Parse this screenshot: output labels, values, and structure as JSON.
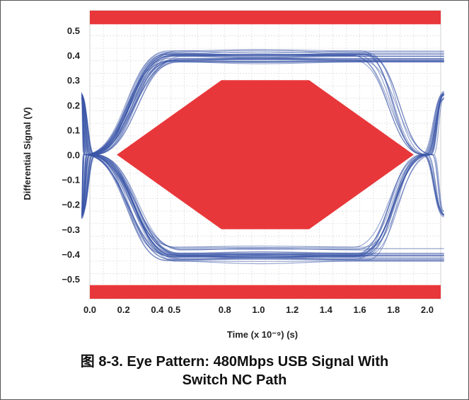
{
  "chart_data": {
    "type": "eye-diagram",
    "title": "",
    "xlabel": "Time (x 10⁻⁹) (s)",
    "ylabel": "Differential Signal (V)",
    "xlim": [
      0.0,
      2.08
    ],
    "ylim": [
      -0.58,
      0.58
    ],
    "x_ticks": [
      0.0,
      0.2,
      0.4,
      0.5,
      0.8,
      1.0,
      1.2,
      1.4,
      1.6,
      1.8,
      2.0
    ],
    "x_tick_labels": [
      "0.0",
      "0.2",
      "0.4",
      "0.5",
      "0.8",
      "1.0",
      "1.2",
      "1.4",
      "1.6",
      "1.8",
      "2.0"
    ],
    "y_ticks": [
      0.5,
      0.4,
      0.3,
      0.2,
      0.1,
      0.0,
      -0.1,
      -0.2,
      -0.3,
      -0.4,
      -0.5
    ],
    "y_tick_labels": [
      "0.5",
      "0.4",
      "0.3",
      "0.2",
      "0.1",
      "0.0",
      "−0.1",
      "−0.2",
      "−0.3",
      "−0.4",
      "−0.5"
    ],
    "grid": true,
    "mask": {
      "color": "#e8373a",
      "top_band": [
        0.525,
        0.58
      ],
      "bottom_band": [
        -0.58,
        -0.525
      ],
      "center_polygon": [
        [
          0.16,
          0.0
        ],
        [
          0.78,
          0.3
        ],
        [
          1.3,
          0.3
        ],
        [
          1.92,
          0.0
        ],
        [
          1.3,
          -0.3
        ],
        [
          0.78,
          -0.3
        ]
      ]
    },
    "eye": {
      "color": "#3a55a8",
      "high_level": 0.4,
      "low_level": -0.4,
      "crossing_times": [
        0.0,
        2.0
      ],
      "trace_count": 60
    }
  },
  "caption": {
    "line1": "图 8-3. Eye Pattern: 480Mbps USB Signal With",
    "line2": "Switch NC Path"
  }
}
